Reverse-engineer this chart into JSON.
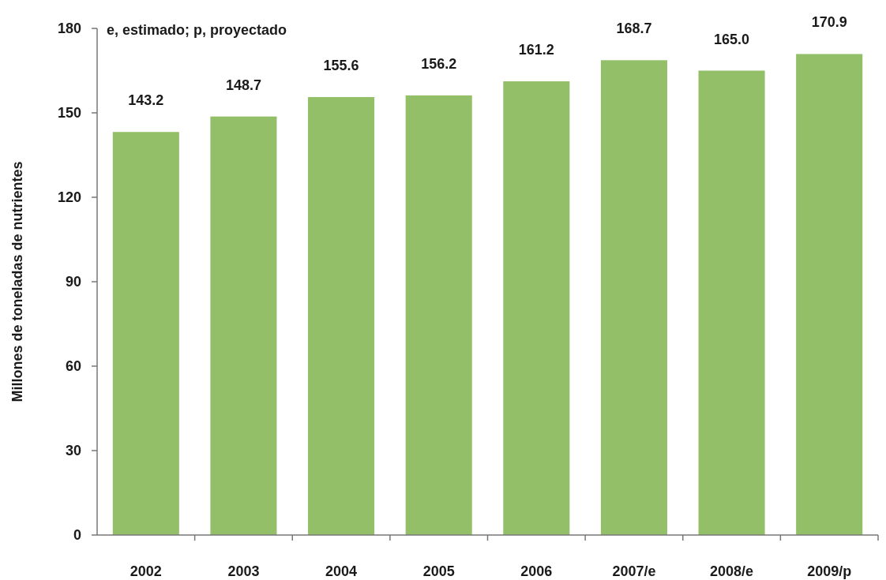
{
  "chart_data": {
    "type": "bar",
    "ylabel": "Millones de toneladas de nutrientes",
    "categories": [
      "2002",
      "2003",
      "2004",
      "2005",
      "2006",
      "2007/e",
      "2008/e",
      "2009/p"
    ],
    "values": [
      143.2,
      148.7,
      155.6,
      156.2,
      161.2,
      168.7,
      165.0,
      170.9
    ],
    "value_labels": [
      "143.2",
      "148.7",
      "155.6",
      "156.2",
      "161.2",
      "168.7",
      "165.0",
      "170.9"
    ],
    "color": "#92bf68",
    "ylim": [
      0,
      180
    ],
    "yticks": [
      0,
      30,
      60,
      90,
      120,
      150,
      180
    ],
    "grid": false,
    "annotations": [
      "e, estimado; p, proyectado"
    ]
  }
}
